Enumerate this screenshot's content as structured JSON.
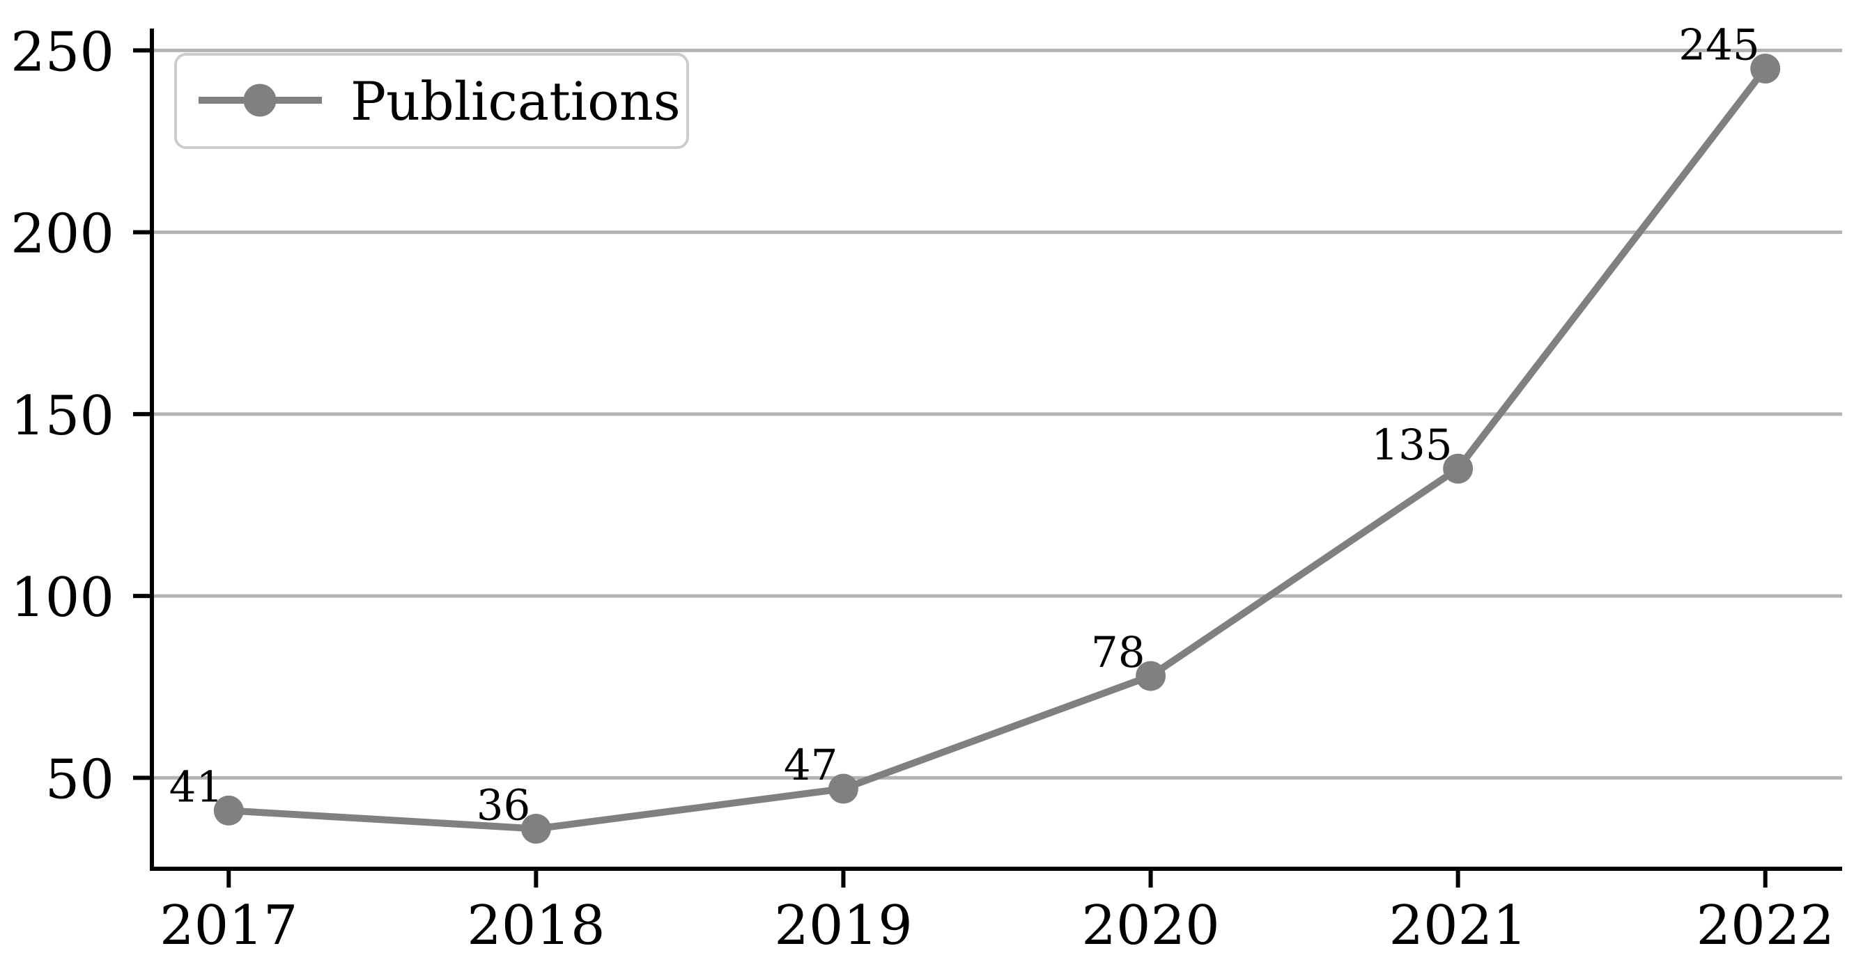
{
  "chart_data": {
    "type": "line",
    "title": "",
    "xlabel": "",
    "ylabel": "",
    "x": [
      "2017",
      "2018",
      "2019",
      "2020",
      "2021",
      "2022"
    ],
    "series": [
      {
        "name": "Publications",
        "values": [
          41,
          36,
          47,
          78,
          135,
          245
        ],
        "point_labels": [
          "41",
          "36",
          "47",
          "78",
          "135",
          "245"
        ],
        "marker": "circle"
      }
    ],
    "yticks": [
      "50",
      "100",
      "150",
      "200",
      "250"
    ],
    "ylim": [
      25,
      256
    ],
    "x_category_margin": 0.25,
    "grid": "horizontal-only",
    "legend": {
      "label": "Publications",
      "position": "upper-left"
    },
    "colors": {
      "line": "#808080",
      "marker": "#808080",
      "gridline": "#b3b3b3",
      "axis": "#000000",
      "tick_text": "#000000",
      "annotation_text": "#000000",
      "legend_border": "#cccccc",
      "legend_background": "#ffffff",
      "background": "#ffffff"
    }
  }
}
